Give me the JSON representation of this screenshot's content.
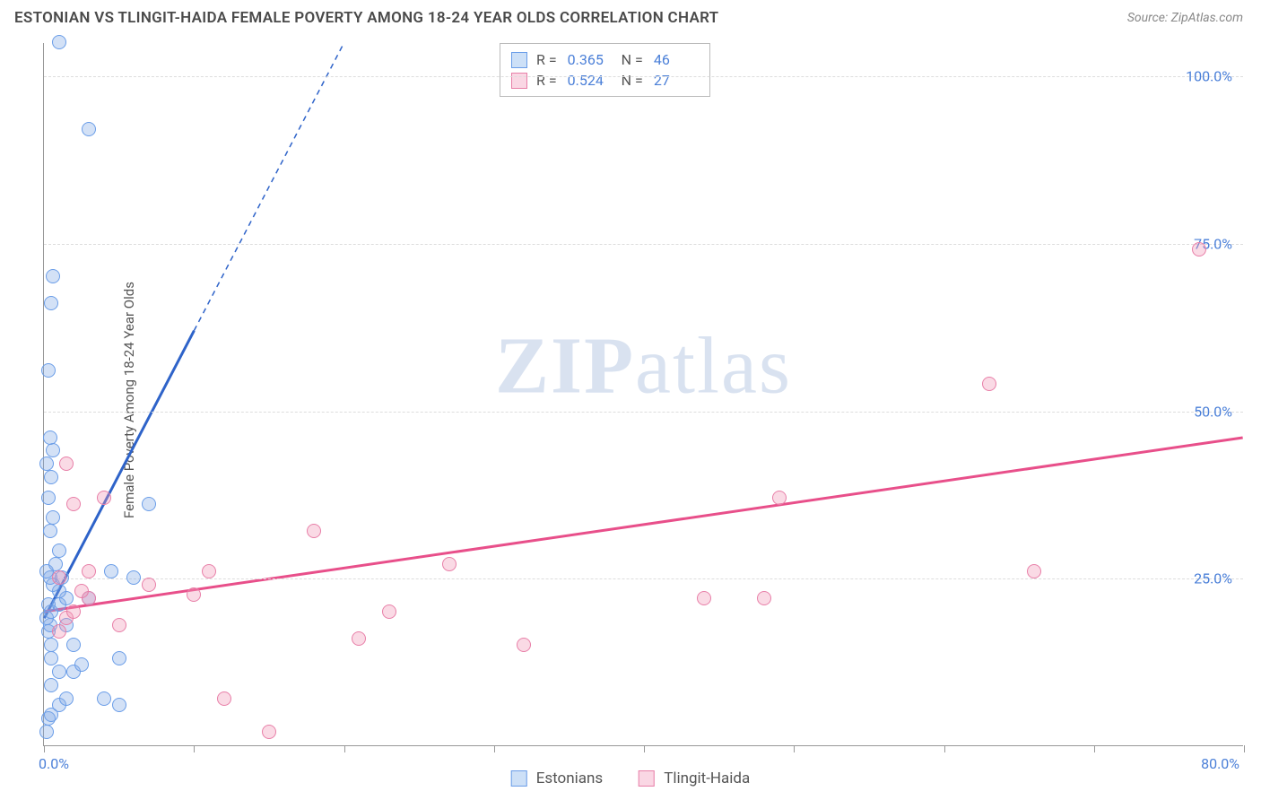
{
  "header": {
    "title": "ESTONIAN VS TLINGIT-HAIDA FEMALE POVERTY AMONG 18-24 YEAR OLDS CORRELATION CHART",
    "source": "Source: ZipAtlas.com"
  },
  "watermark": {
    "prefix": "ZIP",
    "suffix": "atlas"
  },
  "chart": {
    "type": "scatter",
    "background_color": "#ffffff",
    "grid_color": "#dddddd",
    "axis_color": "#999999",
    "ylabel": "Female Poverty Among 18-24 Year Olds",
    "ylabel_fontsize": 15,
    "ylabel_color": "#555555",
    "tick_label_color": "#4a7fd8",
    "tick_label_fontsize": 16,
    "xlim": [
      0,
      80
    ],
    "ylim": [
      0,
      105
    ],
    "xticks": [
      0,
      10,
      20,
      30,
      40,
      50,
      60,
      70,
      80
    ],
    "xtick_labels": {
      "0": "0.0%",
      "80": "80.0%"
    },
    "yticks": [
      25,
      50,
      75,
      100
    ],
    "ytick_labels": {
      "25": "25.0%",
      "50": "50.0%",
      "75": "75.0%",
      "100": "100.0%"
    },
    "marker_radius": 8,
    "marker_stroke_width": 1.5,
    "series": [
      {
        "name": "Estonians",
        "fill_color": "rgba(130,170,230,0.35)",
        "stroke_color": "#6a9de8",
        "swatch_fill": "#cde0f7",
        "swatch_border": "#6a9de8",
        "r": "0.365",
        "n": "46",
        "trend": {
          "x1": 0,
          "y1": 19,
          "x2": 10,
          "y2": 62,
          "x2_dash": 20,
          "y2_dash": 105,
          "color": "#2e63c9",
          "width": 3
        },
        "points": [
          [
            0.2,
            2
          ],
          [
            0.3,
            4
          ],
          [
            0.5,
            4.5
          ],
          [
            1,
            6
          ],
          [
            1.5,
            7
          ],
          [
            0.5,
            9
          ],
          [
            1,
            11
          ],
          [
            2,
            11
          ],
          [
            2.5,
            12
          ],
          [
            0.5,
            13
          ],
          [
            0.5,
            15
          ],
          [
            0.3,
            17
          ],
          [
            0.4,
            18
          ],
          [
            1.5,
            18
          ],
          [
            0.2,
            19
          ],
          [
            0.5,
            20
          ],
          [
            0.3,
            21
          ],
          [
            1,
            21
          ],
          [
            1.5,
            22
          ],
          [
            1,
            23
          ],
          [
            0.6,
            24
          ],
          [
            0.4,
            25
          ],
          [
            1.2,
            25
          ],
          [
            0.2,
            26
          ],
          [
            0.8,
            27
          ],
          [
            1,
            29
          ],
          [
            0.4,
            32
          ],
          [
            0.6,
            34
          ],
          [
            7,
            36
          ],
          [
            0.3,
            37
          ],
          [
            0.5,
            40
          ],
          [
            0.2,
            42
          ],
          [
            0.6,
            44
          ],
          [
            0.4,
            46
          ],
          [
            0.3,
            56
          ],
          [
            0.5,
            66
          ],
          [
            0.6,
            70
          ],
          [
            3,
            92
          ],
          [
            1,
            105
          ],
          [
            5,
            13
          ],
          [
            2,
            15
          ],
          [
            3,
            22
          ],
          [
            4.5,
            26
          ],
          [
            6,
            25
          ],
          [
            4,
            7
          ],
          [
            5,
            6
          ]
        ]
      },
      {
        "name": "Tlingit-Haida",
        "fill_color": "rgba(240,150,180,0.35)",
        "stroke_color": "#e87fa8",
        "swatch_fill": "#fad7e4",
        "swatch_border": "#e87fa8",
        "r": "0.524",
        "n": "27",
        "trend": {
          "x1": 0,
          "y1": 20,
          "x2": 80,
          "y2": 46,
          "color": "#e84f8a",
          "width": 3
        },
        "points": [
          [
            1,
            17
          ],
          [
            1.5,
            19
          ],
          [
            2,
            20
          ],
          [
            3,
            22
          ],
          [
            2.5,
            23
          ],
          [
            1,
            25
          ],
          [
            3,
            26
          ],
          [
            2,
            36
          ],
          [
            4,
            37
          ],
          [
            1.5,
            42
          ],
          [
            10,
            22.5
          ],
          [
            11,
            26
          ],
          [
            12,
            7
          ],
          [
            15,
            2
          ],
          [
            18,
            32
          ],
          [
            23,
            20
          ],
          [
            27,
            27
          ],
          [
            21,
            16
          ],
          [
            32,
            15
          ],
          [
            44,
            22
          ],
          [
            48,
            22
          ],
          [
            49,
            37
          ],
          [
            63,
            54
          ],
          [
            66,
            26
          ],
          [
            77,
            74
          ],
          [
            5,
            18
          ],
          [
            7,
            24
          ]
        ]
      }
    ]
  },
  "legend_top": {
    "r_label": "R =",
    "n_label": "N ="
  },
  "legend_bottom": {
    "items": [
      "Estonians",
      "Tlingit-Haida"
    ]
  }
}
